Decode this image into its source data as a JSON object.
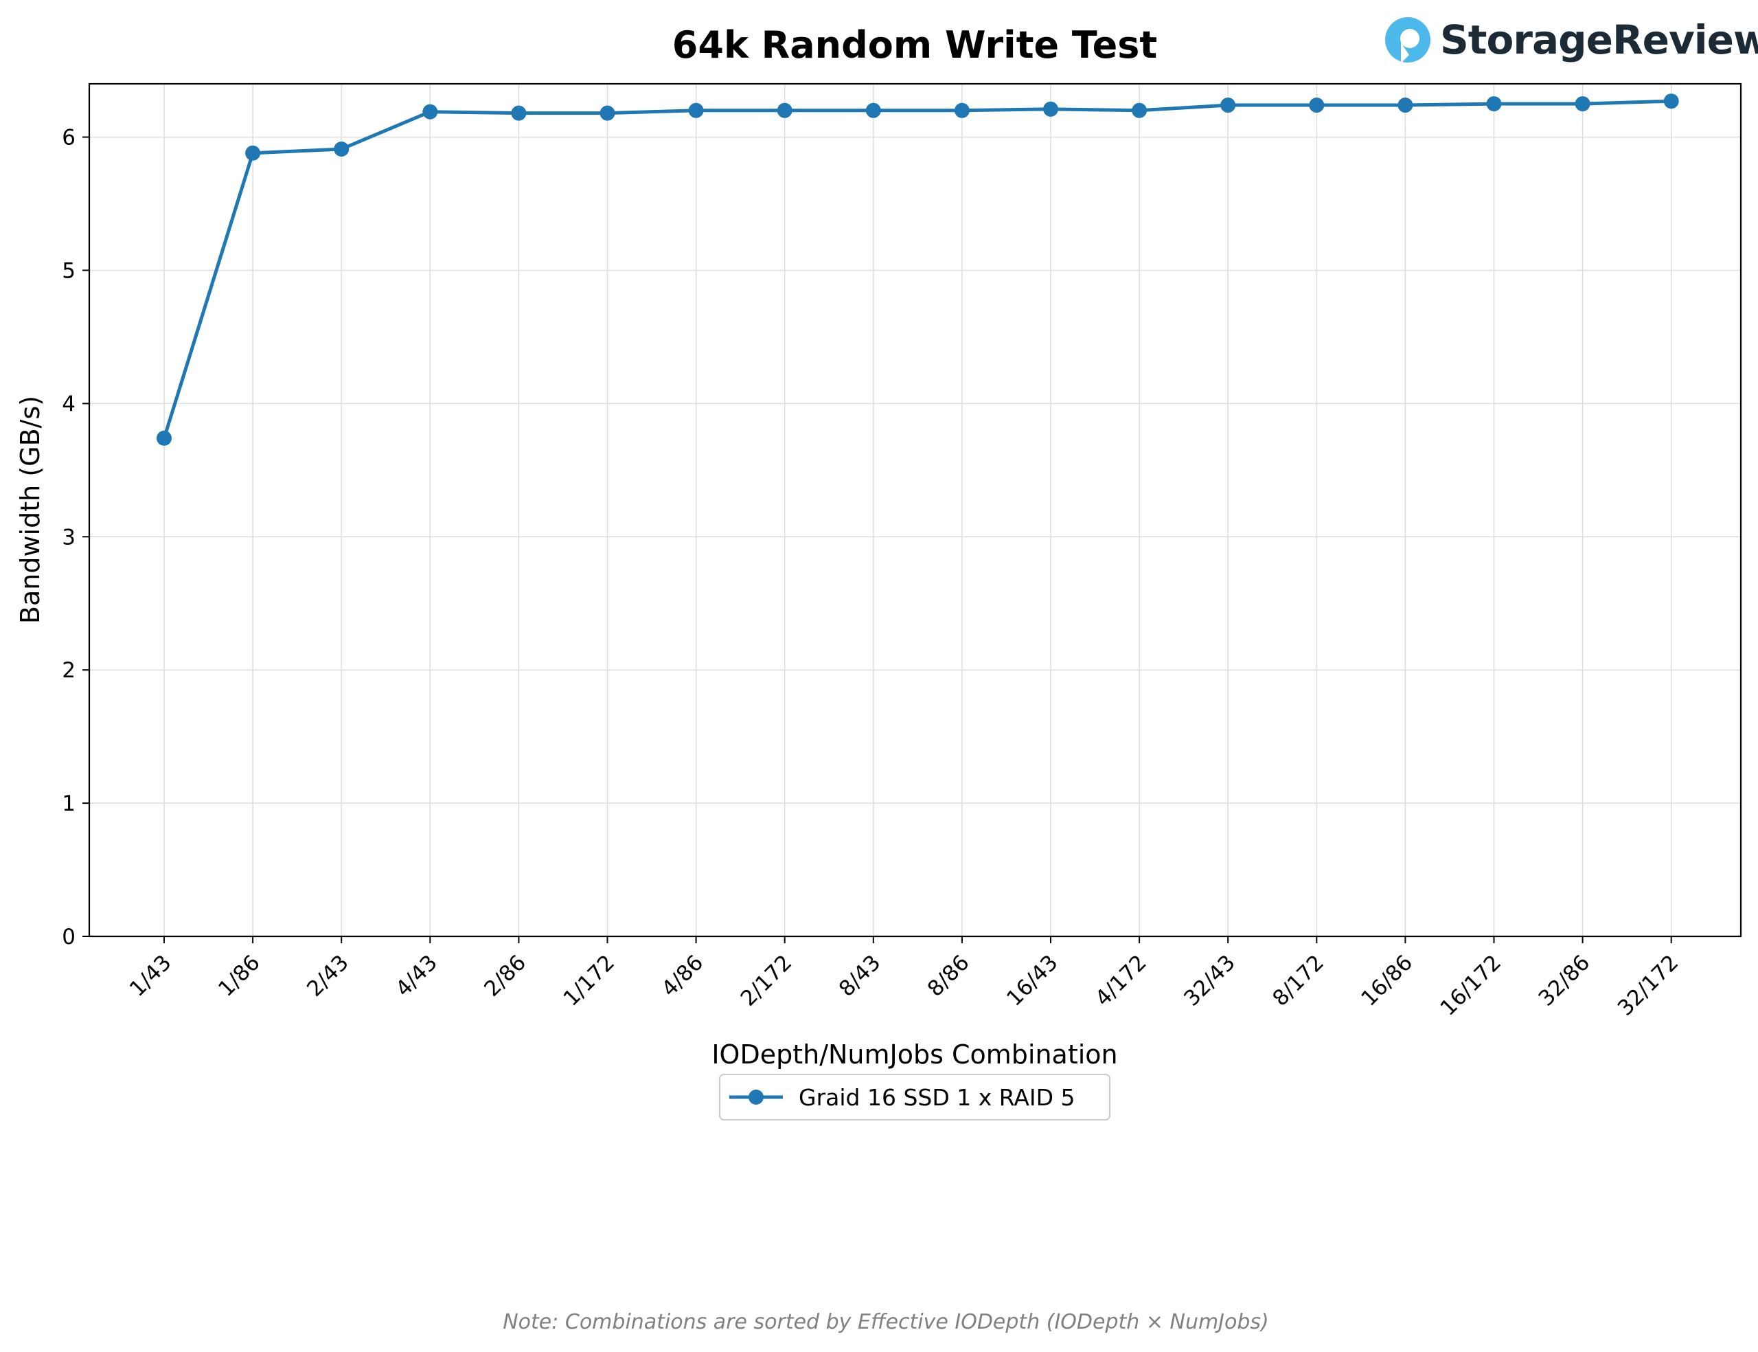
{
  "chart_data": {
    "type": "line",
    "title": "64k Random Write Test",
    "xlabel": "IODepth/NumJobs Combination",
    "ylabel": "Bandwidth (GB/s)",
    "ylim": [
      0,
      6.4
    ],
    "yticks": [
      0,
      1,
      2,
      3,
      4,
      5,
      6
    ],
    "grid": true,
    "legend_position": "bottom-center",
    "categories": [
      "1/43",
      "1/86",
      "2/43",
      "4/43",
      "2/86",
      "1/172",
      "4/86",
      "2/172",
      "8/43",
      "8/86",
      "16/43",
      "4/172",
      "32/43",
      "8/172",
      "16/86",
      "16/172",
      "32/86",
      "32/172"
    ],
    "series": [
      {
        "name": "Graid 16 SSD 1 x RAID 5",
        "color": "#1f77b4",
        "values": [
          3.74,
          5.88,
          5.91,
          6.19,
          6.18,
          6.18,
          6.2,
          6.2,
          6.2,
          6.2,
          6.21,
          6.2,
          6.24,
          6.24,
          6.24,
          6.25,
          6.25,
          6.27
        ]
      }
    ],
    "note": "Note: Combinations are sorted by Effective IODepth (IODepth × NumJobs)"
  },
  "brand": {
    "name": "StorageReview",
    "logo_color": "#4db8ea",
    "logo_icon": "storagereview-logo-icon"
  }
}
